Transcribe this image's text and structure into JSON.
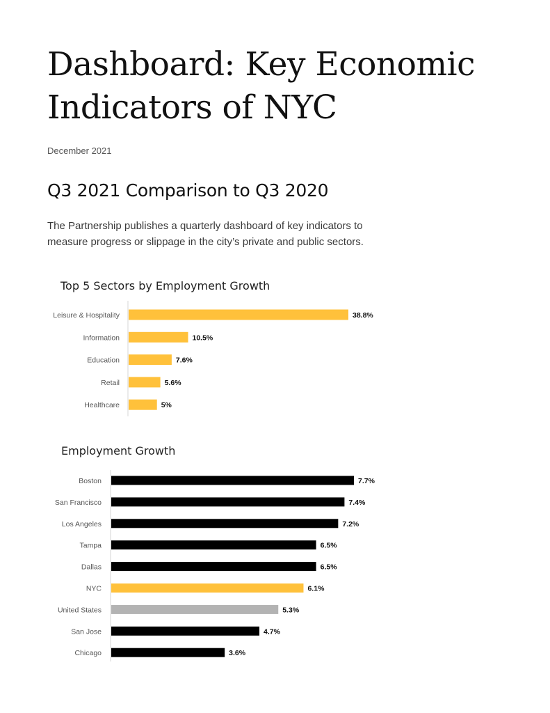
{
  "header": {
    "title": "Dashboard: Key Economic Indicators of NYC",
    "date": "December 2021"
  },
  "section": {
    "heading": "Q3 2021 Comparison to Q3 2020",
    "intro": "The Partnership publishes a quarterly dashboard of key indicators to measure progress or slippage in the city’s private and public sectors."
  },
  "chart_data": [
    {
      "type": "bar",
      "orientation": "horizontal",
      "title": "Top 5 Sectors by Employment Growth",
      "categories": [
        "Leisure & Hospitality",
        "Information",
        "Education",
        "Retail",
        "Healthcare"
      ],
      "values": [
        38.8,
        10.5,
        7.6,
        5.6,
        5
      ],
      "value_labels": [
        "38.8%",
        "10.5%",
        "7.6%",
        "5.6%",
        "5%"
      ],
      "colors": [
        "#FFC13B",
        "#FFC13B",
        "#FFC13B",
        "#FFC13B",
        "#FFC13B"
      ],
      "xlim": [
        0,
        38.8
      ]
    },
    {
      "type": "bar",
      "orientation": "horizontal",
      "title": "Employment Growth",
      "categories": [
        "Boston",
        "San Francisco",
        "Los Angeles",
        "Tampa",
        "Dallas",
        "NYC",
        "United States",
        "San Jose",
        "Chicago"
      ],
      "values": [
        7.7,
        7.4,
        7.2,
        6.5,
        6.5,
        6.1,
        5.3,
        4.7,
        3.6
      ],
      "value_labels": [
        "7.7%",
        "7.4%",
        "7.2%",
        "6.5%",
        "6.5%",
        "6.1%",
        "5.3%",
        "4.7%",
        "3.6%"
      ],
      "colors": [
        "#000000",
        "#000000",
        "#000000",
        "#000000",
        "#000000",
        "#FFC13B",
        "#B3B3B3",
        "#000000",
        "#000000"
      ],
      "xlim": [
        0,
        7.7
      ]
    }
  ]
}
